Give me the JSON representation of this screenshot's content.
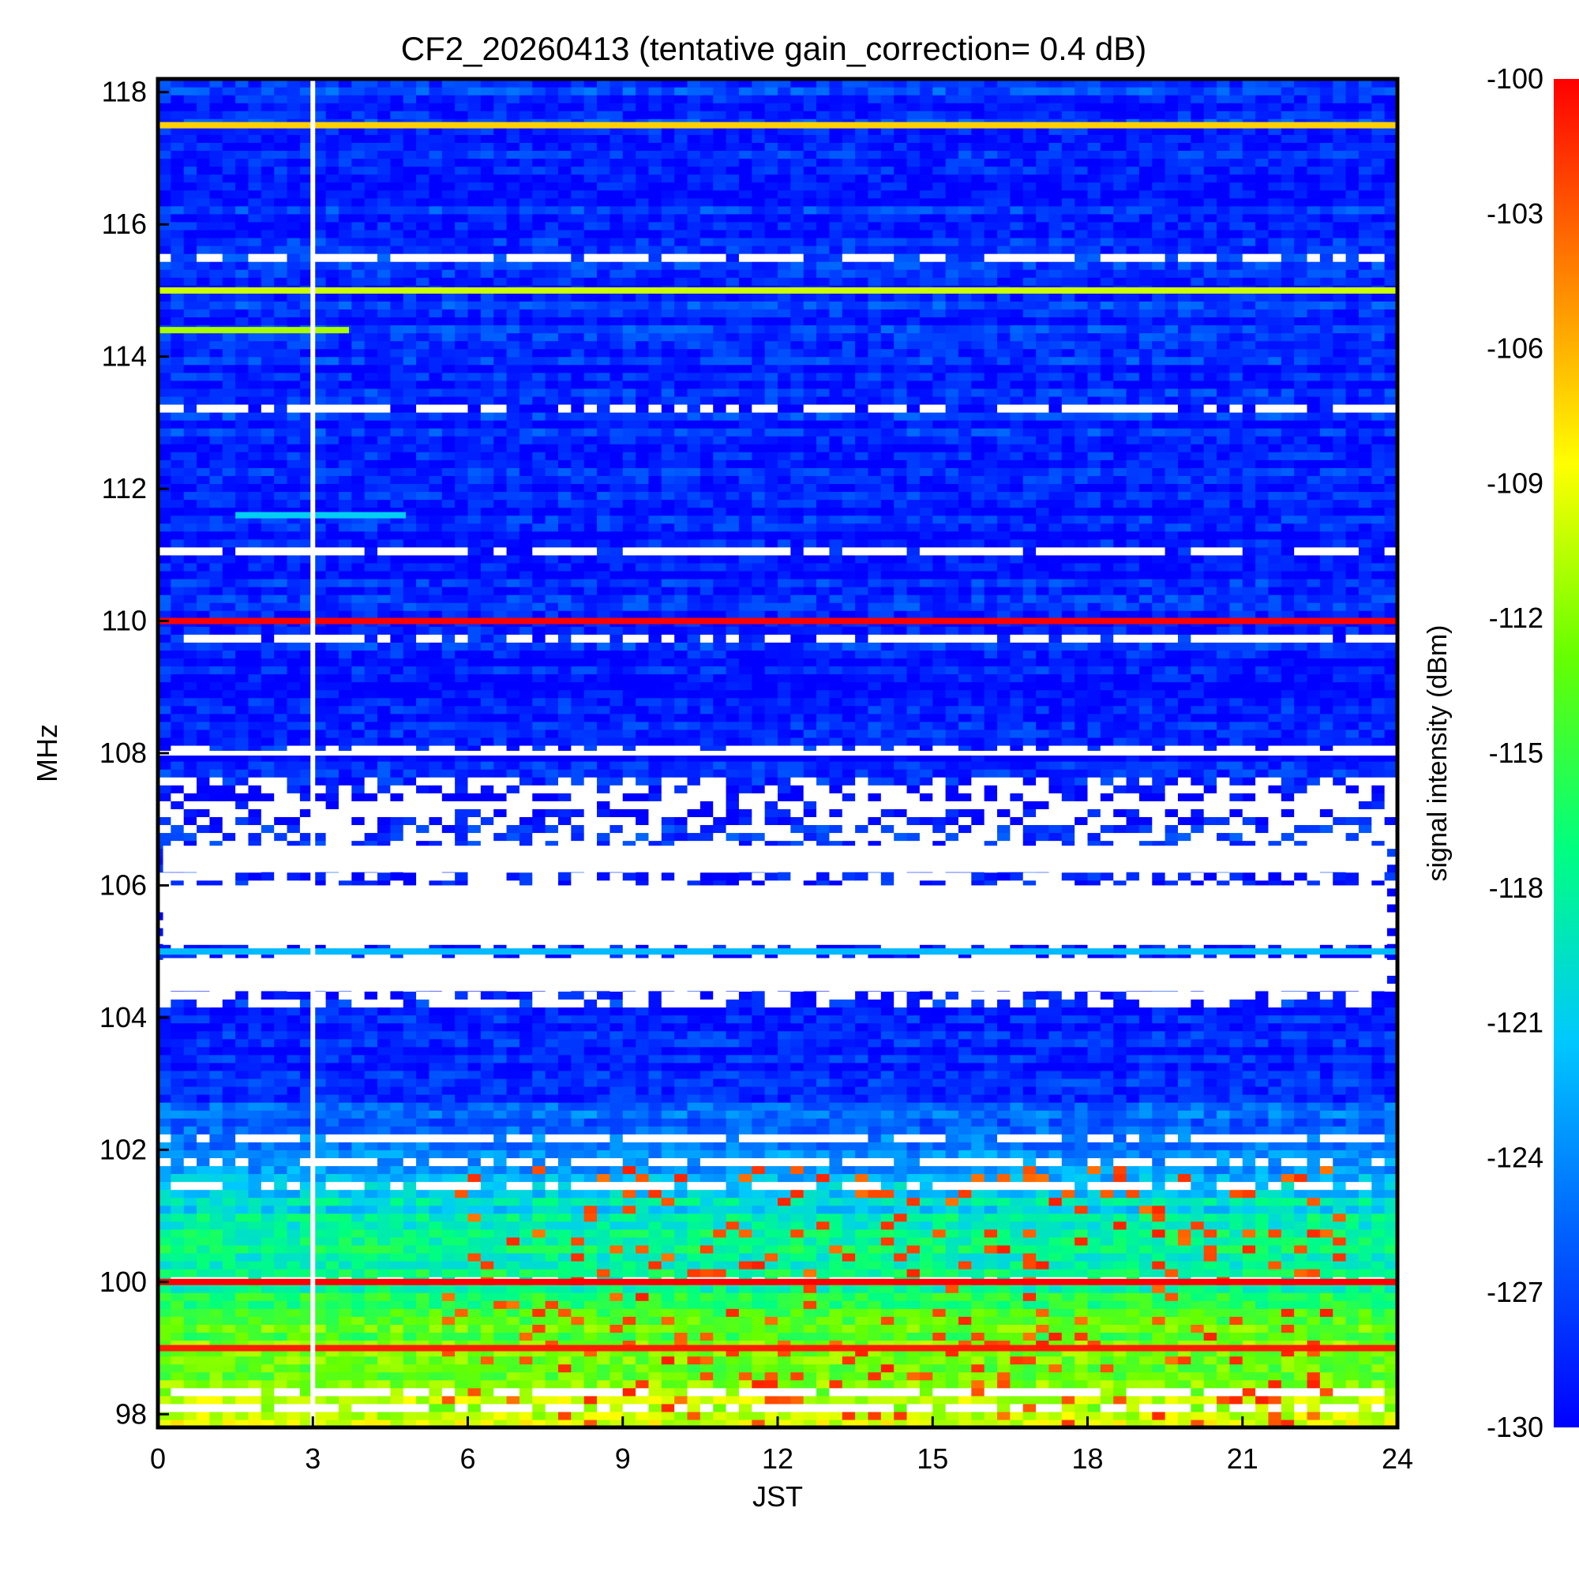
{
  "chart_data": {
    "type": "heatmap",
    "title": "CF2_20260413 (tentative gain_correction=  0.4 dB)",
    "xlabel": "JST",
    "ylabel": "MHz",
    "colorbar_label": "signal intensity (dBm)",
    "xlim": [
      0,
      24
    ],
    "ylim": [
      97.8,
      118.2
    ],
    "x_ticks": [
      0,
      3,
      6,
      9,
      12,
      15,
      18,
      21,
      24
    ],
    "y_ticks": [
      98,
      100,
      102,
      104,
      106,
      108,
      110,
      112,
      114,
      116,
      118
    ],
    "colorbar_range": [
      -130,
      -100
    ],
    "colorbar_ticks": [
      -100,
      -103,
      -106,
      -109,
      -112,
      -115,
      -118,
      -121,
      -124,
      -127,
      -130
    ],
    "colormap": [
      "#0000ff",
      "#0060ff",
      "#00c8ff",
      "#00ff80",
      "#66ff00",
      "#ffff00",
      "#ff8000",
      "#ff0000"
    ],
    "data_gap_jst": 3.0,
    "strong_carriers": [
      {
        "freq_mhz": 117.5,
        "dbm": -107,
        "time": [
          0,
          24
        ]
      },
      {
        "freq_mhz": 115.0,
        "dbm": -110,
        "time": [
          0,
          24
        ]
      },
      {
        "freq_mhz": 114.4,
        "dbm": -111,
        "time": [
          0,
          3.7
        ]
      },
      {
        "freq_mhz": 111.6,
        "dbm": -121,
        "time": [
          1.5,
          4.8
        ]
      },
      {
        "freq_mhz": 110.0,
        "dbm": -100,
        "time": [
          0,
          24
        ]
      },
      {
        "freq_mhz": 105.0,
        "dbm": -122,
        "time": [
          0,
          24
        ]
      },
      {
        "freq_mhz": 100.0,
        "dbm": -100,
        "time": [
          0,
          24
        ]
      },
      {
        "freq_mhz": 99.0,
        "dbm": -101,
        "time": [
          0,
          24
        ]
      }
    ],
    "background_by_freq_dbm": [
      {
        "freq_mhz": 98,
        "dbm": -110
      },
      {
        "freq_mhz": 99,
        "dbm": -113
      },
      {
        "freq_mhz": 100,
        "dbm": -117
      },
      {
        "freq_mhz": 101,
        "dbm": -119
      },
      {
        "freq_mhz": 102,
        "dbm": -124
      },
      {
        "freq_mhz": 103,
        "dbm": -128
      },
      {
        "freq_mhz": 104,
        "dbm": -129
      },
      {
        "freq_mhz": 108,
        "dbm": -129
      },
      {
        "freq_mhz": 118,
        "dbm": -128
      }
    ],
    "blanked_regions": [
      {
        "freq_range": [
          105.1,
          106.0
        ],
        "time": [
          0.1,
          23.8
        ]
      },
      {
        "freq_range": [
          106.2,
          106.6
        ],
        "time": [
          0.1,
          23.8
        ]
      },
      {
        "freq_range": [
          104.4,
          104.9
        ],
        "time": [
          0.1,
          23.8
        ]
      }
    ]
  }
}
